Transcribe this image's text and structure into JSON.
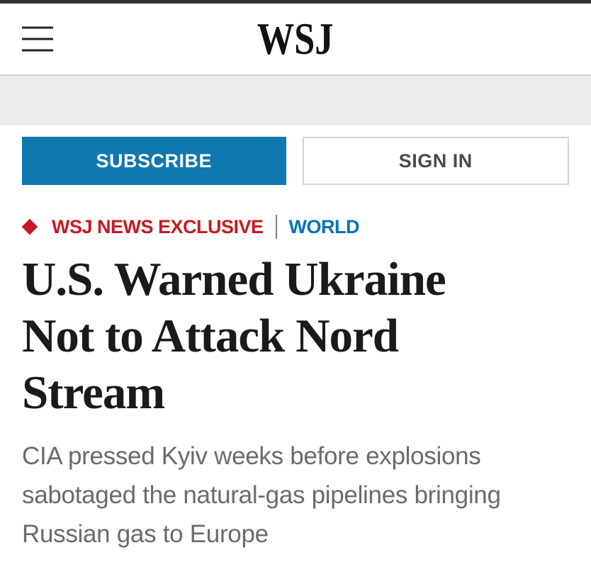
{
  "header": {
    "logo_text": "WSJ"
  },
  "actions": {
    "subscribe_label": "SUBSCRIBE",
    "signin_label": "SIGN IN",
    "subscribe_bg_color": "#0f78af",
    "signin_border_color": "#d4d4d4"
  },
  "article": {
    "kicker": {
      "exclusive_label": "WSJ NEWS EXCLUSIVE",
      "exclusive_color": "#c81923",
      "section_label": "WORLD",
      "section_color": "#0274b6"
    },
    "headline_full": "U.S. Warned Ukraine Not to Attack Nord Stream",
    "headline_lines": [
      "U.S. Warned Ukraine",
      "Not to Attack Nord",
      "Stream"
    ],
    "subheadline_full": "CIA pressed Kyiv weeks before explosions sabotaged the natural-gas pipelines bringing Russian gas to Europe",
    "subheadline_lines": [
      "CIA pressed Kyiv weeks before explosions",
      "sabotaged the natural-gas pipelines bringing",
      "Russian gas to Europe"
    ]
  }
}
